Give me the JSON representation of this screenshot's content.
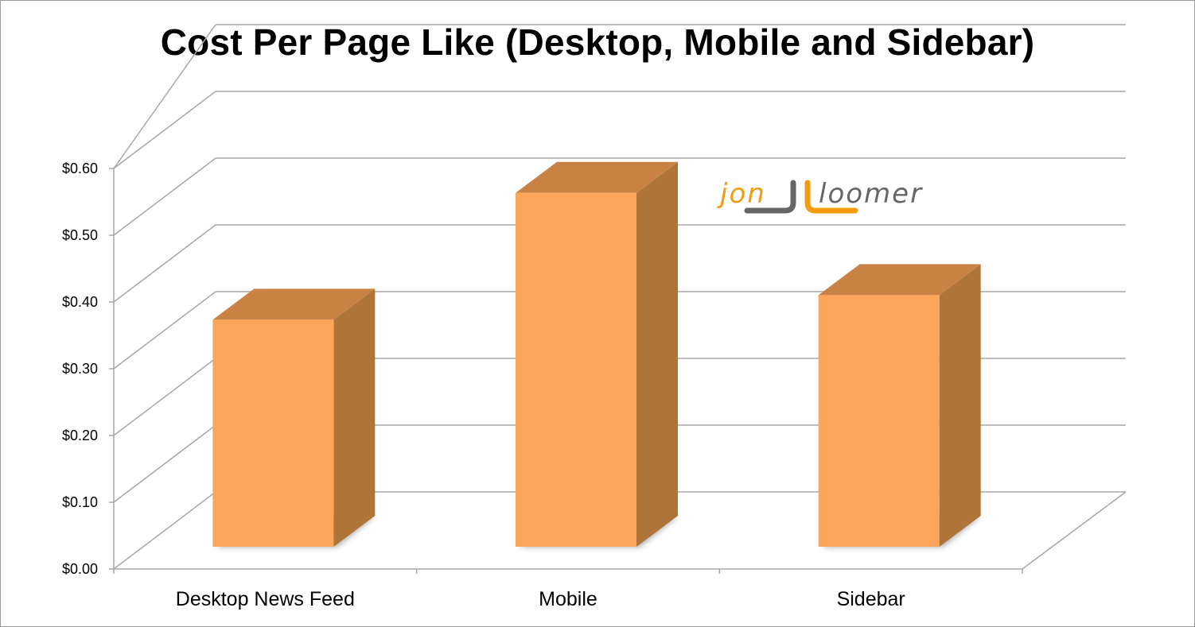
{
  "chart_data": {
    "type": "bar",
    "title": "Cost Per Page Like (Desktop, Mobile and Sidebar)",
    "categories": [
      "Desktop News Feed",
      "Mobile",
      "Sidebar"
    ],
    "series": [
      {
        "values": [
          0.34,
          0.53,
          0.377
        ]
      }
    ],
    "yticks": [
      "$0.00",
      "$0.10",
      "$0.20",
      "$0.30",
      "$0.40",
      "$0.50",
      "$0.60"
    ],
    "ylim": [
      0,
      0.6
    ],
    "grid": true,
    "style": "3d-column",
    "colors": {
      "front": "#FBA65A",
      "top": "#C98243",
      "side": "#AF7438",
      "grid": "#a8a8a8"
    }
  },
  "logo": {
    "part1": "jon",
    "part2": "loomer",
    "color_orange": "#F39C12",
    "color_gray": "#666666"
  }
}
